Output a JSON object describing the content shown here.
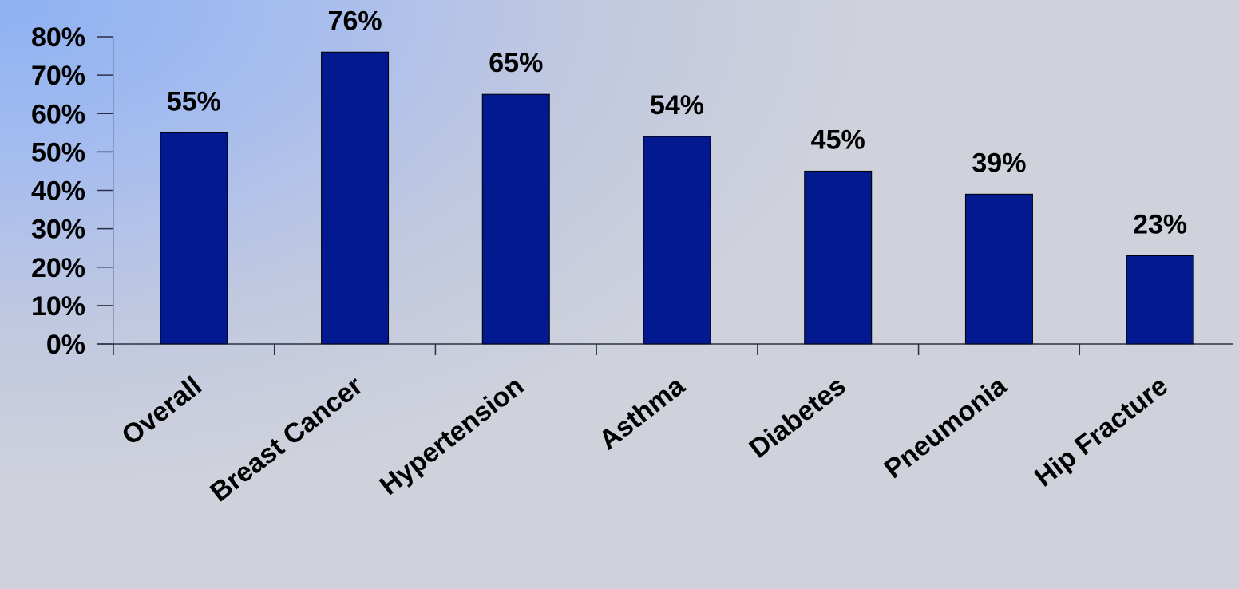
{
  "chart_data": {
    "type": "bar",
    "categories": [
      "Overall",
      "Breast Cancer",
      "Hypertension",
      "Asthma",
      "Diabetes",
      "Pneumonia",
      "Hip Fracture"
    ],
    "values": [
      55,
      76,
      65,
      54,
      45,
      39,
      23
    ],
    "data_labels": [
      "55%",
      "76%",
      "65%",
      "54%",
      "45%",
      "39%",
      "23%"
    ],
    "ylim": [
      0,
      80
    ],
    "yticks": [
      0,
      10,
      20,
      30,
      40,
      50,
      60,
      70,
      80
    ],
    "ytick_labels": [
      "0%",
      "10%",
      "20%",
      "30%",
      "40%",
      "50%",
      "60%",
      "70%",
      "80%"
    ],
    "grid": false,
    "bar_color": "#03198f",
    "title": "",
    "xlabel": "",
    "ylabel": ""
  }
}
